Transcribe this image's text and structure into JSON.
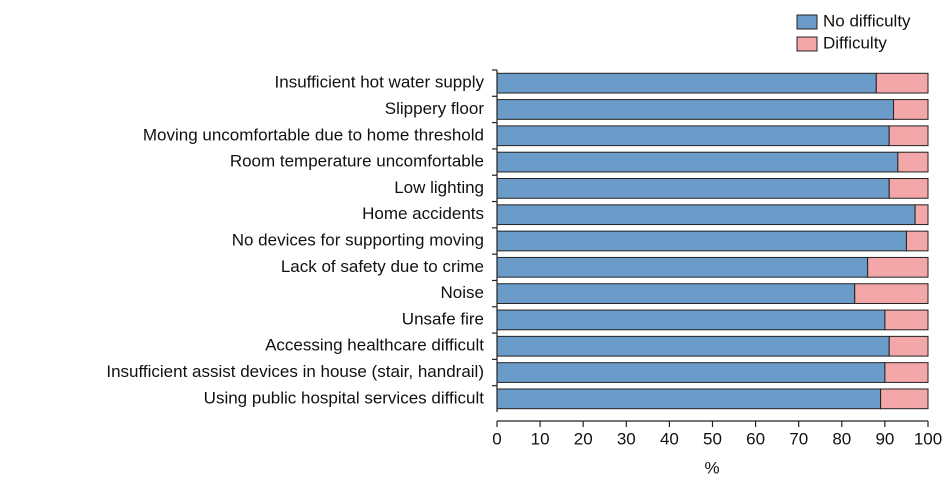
{
  "chart_data": {
    "type": "stacked-barh",
    "categories": [
      "Insufficient hot water supply",
      "Slippery floor",
      "Moving uncomfortable due to home threshold",
      "Room temperature uncomfortable",
      "Low lighting",
      "Home accidents",
      "No devices for supporting moving",
      "Lack of safety due to crime",
      "Noise",
      "Unsafe fire",
      "Accessing healthcare difficult",
      "Insufficient assist devices in house (stair, handrail)",
      "Using public hospital services difficult"
    ],
    "series": [
      {
        "name": "No difficulty",
        "color": "#6b9bc9",
        "values": [
          88,
          92,
          91,
          93,
          91,
          97,
          95,
          86,
          83,
          90,
          91,
          90,
          89
        ]
      },
      {
        "name": "Difficulty",
        "color": "#f4a7a8",
        "values": [
          12,
          8,
          9,
          7,
          9,
          3,
          5,
          14,
          17,
          10,
          9,
          10,
          11
        ]
      }
    ],
    "xlabel": "%",
    "xlim": [
      0,
      100
    ],
    "xticks": [
      0,
      10,
      20,
      30,
      40,
      50,
      60,
      70,
      80,
      90,
      100
    ],
    "legend": "top-right"
  }
}
